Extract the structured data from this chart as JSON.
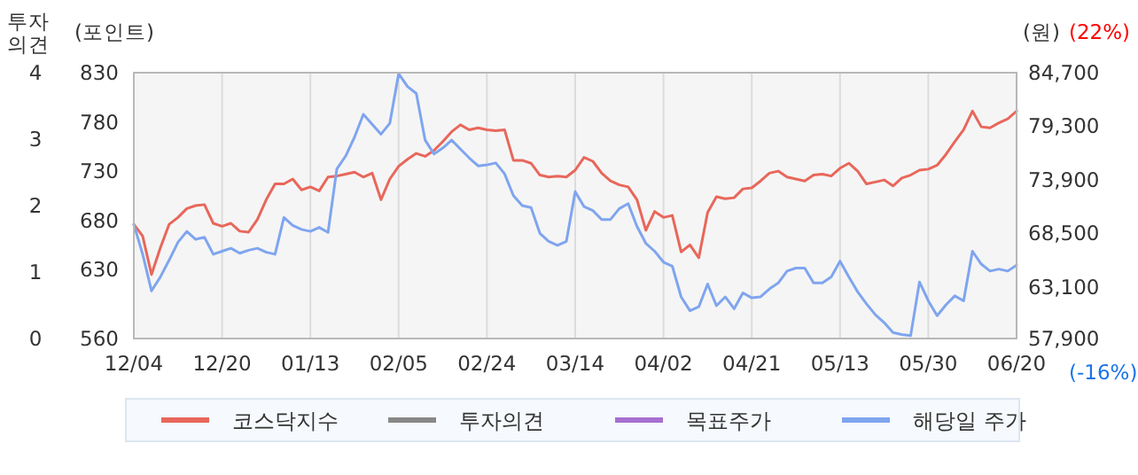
{
  "chart_data": {
    "type": "line",
    "ylabel": "(포인트)",
    "y2label": "(원)",
    "y3label": "투자의견",
    "annotations": [
      "(22%)",
      "(-16%)"
    ],
    "categories": [
      "12/04",
      null,
      null,
      null,
      null,
      null,
      null,
      null,
      null,
      null,
      "12/20",
      null,
      null,
      null,
      null,
      null,
      null,
      null,
      null,
      null,
      "01/13",
      null,
      null,
      null,
      null,
      null,
      null,
      null,
      null,
      null,
      "02/05",
      null,
      null,
      null,
      null,
      null,
      null,
      null,
      null,
      null,
      "02/24",
      null,
      null,
      null,
      null,
      null,
      null,
      null,
      null,
      null,
      "03/14",
      null,
      null,
      null,
      null,
      null,
      null,
      null,
      null,
      null,
      "04/02",
      null,
      null,
      null,
      null,
      null,
      null,
      null,
      null,
      null,
      "04/21",
      null,
      null,
      null,
      null,
      null,
      null,
      null,
      null,
      null,
      "05/13",
      null,
      null,
      null,
      null,
      null,
      null,
      null,
      null,
      null,
      "05/30",
      null,
      null,
      null,
      null,
      null,
      null,
      null,
      null,
      null,
      "06/20"
    ],
    "ylim": [
      560,
      830
    ],
    "yticks": [
      560,
      630,
      680,
      730,
      780,
      830
    ],
    "y2lim": [
      57900,
      84700
    ],
    "y2ticks": [
      {
        "value": 57900,
        "label": "57,900"
      },
      {
        "value": 63100,
        "label": "63,100"
      },
      {
        "value": 68500,
        "label": "68,500"
      },
      {
        "value": 73900,
        "label": "73,900"
      },
      {
        "value": 79300,
        "label": "79,300"
      },
      {
        "value": 84700,
        "label": "84,700"
      }
    ],
    "y3lim": [
      0,
      4
    ],
    "y3ticks": [
      0,
      1,
      2,
      3,
      4
    ],
    "grid": "x",
    "legend": "bottom",
    "series": [
      {
        "name": "코스닥지수",
        "color": "#e8675b",
        "values": [
          676,
          664,
          625,
          652,
          676,
          683,
          692,
          695,
          696,
          677,
          674,
          677,
          669,
          668,
          681,
          701,
          717,
          717,
          722,
          711,
          714,
          710,
          724,
          725,
          727,
          729,
          724,
          728,
          701,
          722,
          735,
          742,
          748,
          745,
          751,
          760,
          770,
          777,
          772,
          774,
          772,
          771,
          772,
          741,
          741,
          738,
          726,
          724,
          725,
          724,
          731,
          744,
          740,
          728,
          720,
          716,
          714,
          701,
          670,
          689,
          683,
          685,
          648,
          655,
          642,
          688,
          704,
          702,
          703,
          712,
          713,
          720,
          728,
          730,
          724,
          722,
          720,
          726,
          727,
          725,
          733,
          738,
          730,
          717,
          719,
          721,
          715,
          723,
          726,
          731,
          732,
          736,
          747,
          760,
          772,
          791,
          775,
          774,
          779,
          783,
          791
        ]
      },
      {
        "name": "투자의견",
        "color": "#888888",
        "axis": "y3",
        "values": [
          null,
          null,
          null,
          null,
          null,
          null,
          null,
          null,
          null,
          null,
          null,
          null,
          null,
          null,
          null,
          null,
          null,
          null,
          null,
          null,
          null,
          null,
          null,
          null,
          null,
          null,
          null,
          null,
          null,
          null,
          null,
          null,
          null,
          null,
          null,
          null,
          null,
          null,
          null,
          null,
          null,
          null,
          null,
          null,
          null,
          null,
          null,
          null,
          null,
          null,
          null,
          null,
          null,
          null,
          null,
          null,
          null,
          null,
          null,
          null,
          null,
          null,
          null,
          null,
          null,
          null,
          null,
          null,
          null,
          null,
          null,
          null,
          null,
          null,
          null,
          null,
          null,
          null,
          null,
          null,
          null,
          null,
          null,
          null,
          null,
          null,
          null,
          null,
          null,
          null,
          null,
          null,
          null,
          null,
          null,
          null,
          null,
          null,
          null,
          null,
          null
        ]
      },
      {
        "name": "목표주가",
        "color": "#a56fd0",
        "values": [
          null,
          null,
          null,
          null,
          null,
          null,
          null,
          null,
          null,
          null,
          null,
          null,
          null,
          null,
          null,
          null,
          null,
          null,
          null,
          null,
          null,
          null,
          null,
          null,
          null,
          null,
          null,
          null,
          null,
          null,
          null,
          null,
          null,
          null,
          null,
          null,
          null,
          null,
          null,
          null,
          null,
          null,
          null,
          null,
          null,
          null,
          null,
          null,
          null,
          null,
          null,
          null,
          null,
          null,
          null,
          null,
          null,
          null,
          null,
          null,
          null,
          null,
          null,
          null,
          null,
          null,
          null,
          null,
          null,
          null,
          null,
          null,
          null,
          null,
          null,
          null,
          null,
          null,
          null,
          null,
          null,
          null,
          null,
          null,
          null,
          null,
          null,
          null,
          null,
          null,
          null,
          null,
          null,
          null,
          null,
          null,
          null,
          null,
          null,
          null,
          null
        ]
      },
      {
        "name": "해당일 주가",
        "color": "#7fa5ef",
        "axis": "y2",
        "values": [
          69400,
          66400,
          62700,
          64100,
          65800,
          67600,
          68700,
          67900,
          68100,
          66400,
          66700,
          67000,
          66500,
          66800,
          67000,
          66600,
          66400,
          70100,
          69300,
          68900,
          68700,
          69100,
          68600,
          75000,
          76300,
          78200,
          80500,
          79500,
          78500,
          79600,
          84600,
          83300,
          82600,
          77900,
          76500,
          77100,
          77900,
          77000,
          76100,
          75300,
          75400,
          75600,
          74500,
          72300,
          71300,
          71100,
          68500,
          67700,
          67300,
          67700,
          72700,
          71200,
          70800,
          69900,
          69900,
          71000,
          71500,
          69200,
          67500,
          66700,
          65600,
          65200,
          62100,
          60700,
          61100,
          63400,
          61200,
          62100,
          60900,
          62500,
          62000,
          62100,
          62900,
          63500,
          64700,
          65000,
          65000,
          63500,
          63500,
          64100,
          65700,
          64100,
          62600,
          61400,
          60300,
          59500,
          58500,
          58300,
          58200,
          63600,
          61700,
          60200,
          61300,
          62200,
          61700,
          66700,
          65400,
          64700,
          64900,
          64700,
          65300
        ]
      }
    ]
  }
}
